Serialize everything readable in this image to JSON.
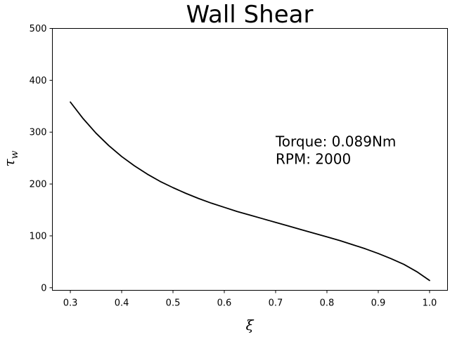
{
  "chart_data": {
    "type": "line",
    "title": "Wall Shear",
    "xlabel": "ξ",
    "ylabel_base": "τ",
    "ylabel_sub": "w",
    "xlim": [
      0.265,
      1.035
    ],
    "ylim": [
      -5,
      500
    ],
    "xticks": [
      0.3,
      0.4,
      0.5,
      0.6,
      0.7,
      0.8,
      0.9,
      1.0
    ],
    "xtick_labels": [
      "0.3",
      "0.4",
      "0.5",
      "0.6",
      "0.7",
      "0.8",
      "0.9",
      "1.0"
    ],
    "yticks": [
      0,
      100,
      200,
      300,
      400,
      500
    ],
    "ytick_labels": [
      "0",
      "100",
      "200",
      "300",
      "400",
      "500"
    ],
    "grid": false,
    "line_color": "#000000",
    "annotation": {
      "lines": [
        "Torque: 0.089Nm",
        "RPM: 2000"
      ],
      "x": 0.7,
      "y": 270
    },
    "series": [
      {
        "x": [
          0.3,
          0.325,
          0.35,
          0.375,
          0.4,
          0.425,
          0.45,
          0.475,
          0.5,
          0.525,
          0.55,
          0.575,
          0.6,
          0.625,
          0.65,
          0.675,
          0.7,
          0.725,
          0.75,
          0.775,
          0.8,
          0.825,
          0.85,
          0.875,
          0.9,
          0.925,
          0.95,
          0.975,
          1.0
        ],
        "y": [
          358,
          326,
          298,
          274,
          253,
          235,
          219,
          205,
          193,
          182,
          172,
          163,
          155,
          147,
          140,
          133,
          126,
          119,
          112,
          105,
          98,
          91,
          83,
          75,
          66,
          56,
          45,
          31,
          14
        ]
      }
    ]
  }
}
